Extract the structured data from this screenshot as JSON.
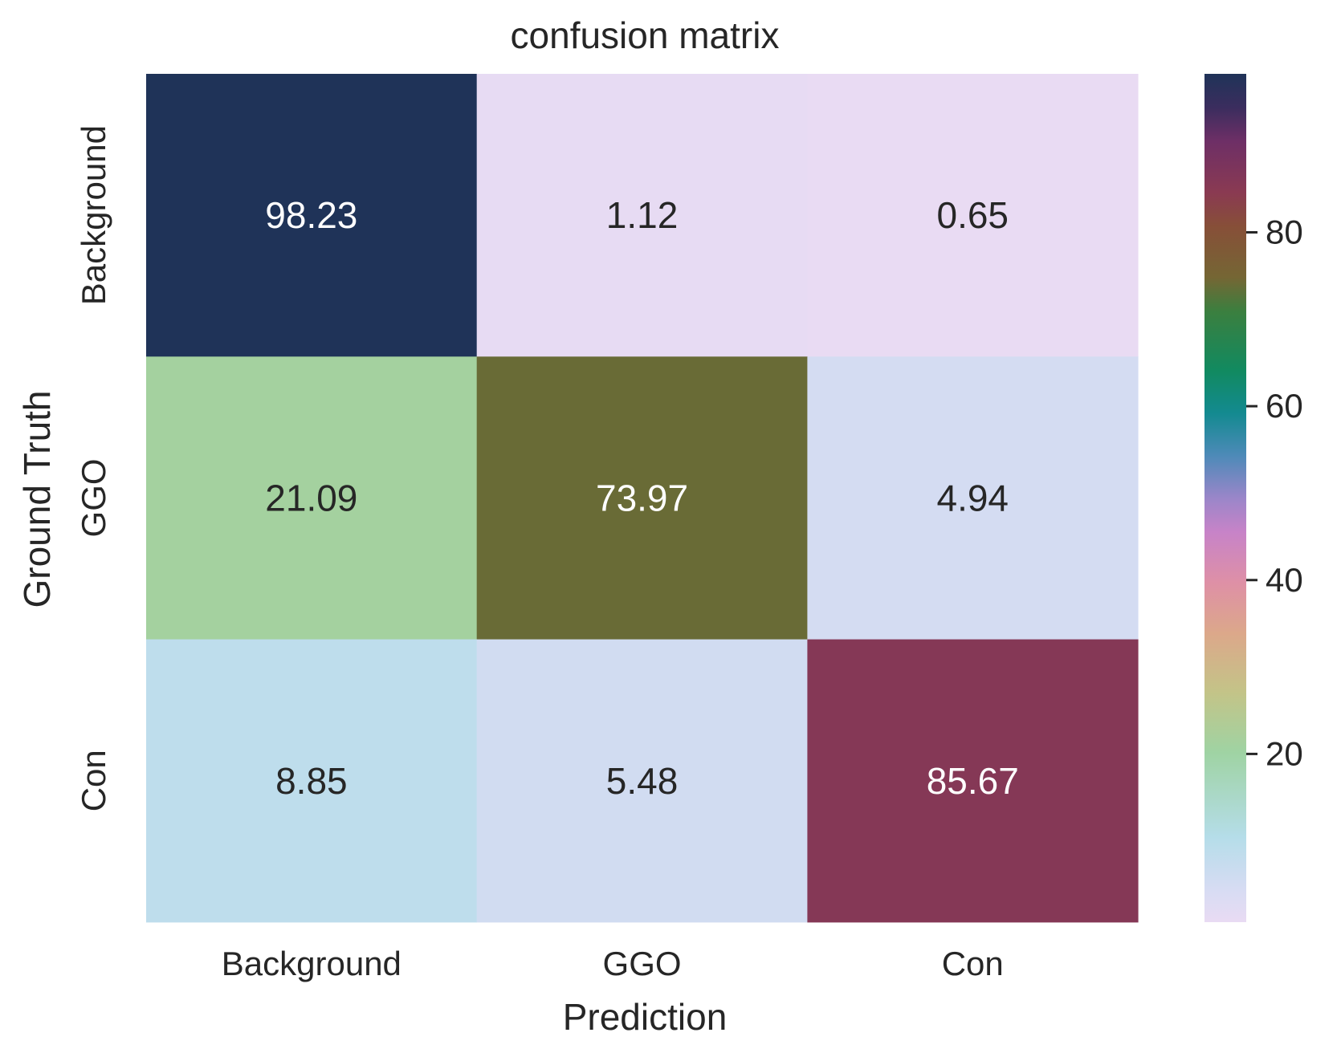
{
  "chart_data": {
    "type": "heatmap",
    "title": "confusion matrix",
    "xlabel": "Prediction",
    "ylabel": "Ground Truth",
    "x_categories": [
      "Background",
      "GGO",
      "Con"
    ],
    "y_categories": [
      "Background",
      "GGO",
      "Con"
    ],
    "values": [
      [
        98.23,
        1.12,
        0.65
      ],
      [
        21.09,
        73.97,
        4.94
      ],
      [
        8.85,
        5.48,
        85.67
      ]
    ],
    "value_labels": [
      [
        "98.23",
        "1.12",
        "0.65"
      ],
      [
        "21.09",
        "73.97",
        "4.94"
      ],
      [
        "8.85",
        "5.48",
        "85.67"
      ]
    ],
    "colorbar": {
      "range": [
        0.65,
        98.23
      ],
      "ticks": [
        20,
        40,
        60,
        80
      ],
      "tick_labels": [
        "20",
        "40",
        "60",
        "80"
      ]
    },
    "colormap_stops": [
      [
        0.0,
        "#e9dbf3"
      ],
      [
        0.04,
        "#d6dcf3"
      ],
      [
        0.1,
        "#b5dde9"
      ],
      [
        0.2,
        "#9fd3a3"
      ],
      [
        0.27,
        "#c3c488"
      ],
      [
        0.34,
        "#dca88a"
      ],
      [
        0.4,
        "#de90a6"
      ],
      [
        0.46,
        "#c783c8"
      ],
      [
        0.5,
        "#9a86c9"
      ],
      [
        0.55,
        "#4d8ab8"
      ],
      [
        0.6,
        "#138a90"
      ],
      [
        0.65,
        "#118a60"
      ],
      [
        0.72,
        "#3b7f3f"
      ],
      [
        0.76,
        "#756634"
      ],
      [
        0.82,
        "#874f38"
      ],
      [
        0.86,
        "#8a3a52"
      ],
      [
        0.92,
        "#6e2f66"
      ],
      [
        0.96,
        "#3b2d5e"
      ],
      [
        1.0,
        "#1f3358"
      ]
    ]
  }
}
